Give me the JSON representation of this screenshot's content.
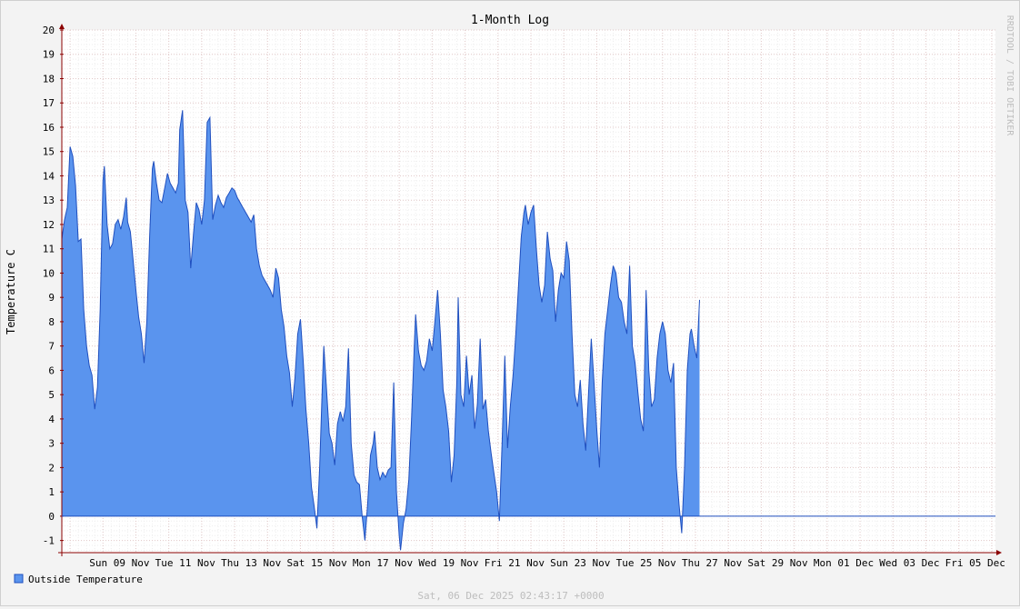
{
  "chart_data": {
    "type": "area",
    "title": "1-Month Log",
    "ylabel": "Temperature C",
    "watermark": "RRDTOOL / TOBI OETIKER",
    "timestamp": "Sat, 06 Dec 2025 02:43:17 +0000",
    "ylim": [
      -1.5,
      20
    ],
    "grid": true,
    "legend_position": "bottom-left",
    "colors": {
      "area": "#5a94ee",
      "line": "#1f4fbf",
      "background": "#f3f3f3",
      "plot_bg": "#ffffff",
      "axis": "#8b0000"
    },
    "yticks": [
      -1,
      0,
      1,
      2,
      3,
      4,
      5,
      6,
      7,
      8,
      9,
      10,
      11,
      12,
      13,
      14,
      15,
      16,
      17,
      18,
      19,
      20
    ],
    "xtick_labels": [
      "Sun 09 Nov",
      "Tue 11 Nov",
      "Thu 13 Nov",
      "Sat 15 Nov",
      "Mon 17 Nov",
      "Wed 19 Nov",
      "Fri 21 Nov",
      "Sun 23 Nov",
      "Tue 25 Nov",
      "Thu 27 Nov",
      "Sat 29 Nov",
      "Mon 01 Dec",
      "Wed 03 Dec",
      "Fri 05 Dec"
    ],
    "x_range": [
      "2025-11-07T18:00",
      "2025-12-06T02:43"
    ],
    "series": [
      {
        "name": "Outside Temperature",
        "points": [
          [
            "2025-11-07T18:00",
            11.4
          ],
          [
            "2025-11-07T20:00",
            12.2
          ],
          [
            "2025-11-07T22:00",
            12.7
          ],
          [
            "2025-11-08T00:00",
            15.2
          ],
          [
            "2025-11-08T02:00",
            14.8
          ],
          [
            "2025-11-08T04:00",
            13.6
          ],
          [
            "2025-11-08T06:00",
            11.3
          ],
          [
            "2025-11-08T08:00",
            11.4
          ],
          [
            "2025-11-08T10:00",
            8.5
          ],
          [
            "2025-11-08T12:00",
            7.0
          ],
          [
            "2025-11-08T14:00",
            6.2
          ],
          [
            "2025-11-08T16:00",
            5.8
          ],
          [
            "2025-11-08T18:00",
            4.4
          ],
          [
            "2025-11-08T20:00",
            5.3
          ],
          [
            "2025-11-08T22:00",
            8.5
          ],
          [
            "2025-11-09T00:00",
            13.8
          ],
          [
            "2025-11-09T01:00",
            14.4
          ],
          [
            "2025-11-09T03:00",
            12.0
          ],
          [
            "2025-11-09T05:00",
            11.0
          ],
          [
            "2025-11-09T07:00",
            11.2
          ],
          [
            "2025-11-09T09:00",
            12.0
          ],
          [
            "2025-11-09T11:00",
            12.2
          ],
          [
            "2025-11-09T13:00",
            11.8
          ],
          [
            "2025-11-09T15:00",
            12.3
          ],
          [
            "2025-11-09T17:00",
            13.1
          ],
          [
            "2025-11-09T18:00",
            12.1
          ],
          [
            "2025-11-09T20:00",
            11.7
          ],
          [
            "2025-11-09T22:00",
            10.5
          ],
          [
            "2025-11-10T00:00",
            9.3
          ],
          [
            "2025-11-10T02:00",
            8.2
          ],
          [
            "2025-11-10T04:00",
            7.5
          ],
          [
            "2025-11-10T06:00",
            6.3
          ],
          [
            "2025-11-10T08:00",
            8.0
          ],
          [
            "2025-11-10T10:00",
            11.5
          ],
          [
            "2025-11-10T12:00",
            14.3
          ],
          [
            "2025-11-10T13:00",
            14.6
          ],
          [
            "2025-11-10T15:00",
            13.7
          ],
          [
            "2025-11-10T17:00",
            13.0
          ],
          [
            "2025-11-10T19:00",
            12.9
          ],
          [
            "2025-11-10T21:00",
            13.5
          ],
          [
            "2025-11-10T23:00",
            14.1
          ],
          [
            "2025-11-11T01:00",
            13.7
          ],
          [
            "2025-11-11T03:00",
            13.5
          ],
          [
            "2025-11-11T05:00",
            13.3
          ],
          [
            "2025-11-11T07:00",
            13.7
          ],
          [
            "2025-11-11T08:00",
            15.9
          ],
          [
            "2025-11-11T10:00",
            16.7
          ],
          [
            "2025-11-11T12:00",
            13.0
          ],
          [
            "2025-11-11T14:00",
            12.5
          ],
          [
            "2025-11-11T16:00",
            10.2
          ],
          [
            "2025-11-11T18:00",
            11.6
          ],
          [
            "2025-11-11T20:00",
            12.9
          ],
          [
            "2025-11-11T22:00",
            12.6
          ],
          [
            "2025-11-12T00:00",
            12.0
          ],
          [
            "2025-11-12T02:00",
            13.0
          ],
          [
            "2025-11-12T04:00",
            16.2
          ],
          [
            "2025-11-12T06:00",
            16.4
          ],
          [
            "2025-11-12T08:00",
            12.2
          ],
          [
            "2025-11-12T10:00",
            12.8
          ],
          [
            "2025-11-12T12:00",
            13.2
          ],
          [
            "2025-11-12T14:00",
            12.9
          ],
          [
            "2025-11-12T16:00",
            12.7
          ],
          [
            "2025-11-12T18:00",
            13.1
          ],
          [
            "2025-11-12T20:00",
            13.3
          ],
          [
            "2025-11-12T22:00",
            13.5
          ],
          [
            "2025-11-13T00:00",
            13.4
          ],
          [
            "2025-11-13T02:00",
            13.1
          ],
          [
            "2025-11-13T04:00",
            12.9
          ],
          [
            "2025-11-13T06:00",
            12.7
          ],
          [
            "2025-11-13T08:00",
            12.5
          ],
          [
            "2025-11-13T10:00",
            12.3
          ],
          [
            "2025-11-13T12:00",
            12.1
          ],
          [
            "2025-11-13T14:00",
            12.4
          ],
          [
            "2025-11-13T16:00",
            11.0
          ],
          [
            "2025-11-13T18:00",
            10.3
          ],
          [
            "2025-11-13T20:00",
            9.9
          ],
          [
            "2025-11-13T22:00",
            9.7
          ],
          [
            "2025-11-14T00:00",
            9.5
          ],
          [
            "2025-11-14T02:00",
            9.3
          ],
          [
            "2025-11-14T04:00",
            9.0
          ],
          [
            "2025-11-14T06:00",
            10.2
          ],
          [
            "2025-11-14T08:00",
            9.8
          ],
          [
            "2025-11-14T10:00",
            8.5
          ],
          [
            "2025-11-14T12:00",
            7.8
          ],
          [
            "2025-11-14T14:00",
            6.6
          ],
          [
            "2025-11-14T16:00",
            5.9
          ],
          [
            "2025-11-14T18:00",
            4.5
          ],
          [
            "2025-11-14T20:00",
            5.7
          ],
          [
            "2025-11-14T22:00",
            7.5
          ],
          [
            "2025-11-15T00:00",
            8.1
          ],
          [
            "2025-11-15T02:00",
            6.4
          ],
          [
            "2025-11-15T04:00",
            4.4
          ],
          [
            "2025-11-15T06:00",
            3.0
          ],
          [
            "2025-11-15T08:00",
            1.2
          ],
          [
            "2025-11-15T10:00",
            0.4
          ],
          [
            "2025-11-15T12:00",
            -0.5
          ],
          [
            "2025-11-15T14:00",
            2.0
          ],
          [
            "2025-11-15T16:00",
            5.5
          ],
          [
            "2025-11-15T17:00",
            7.0
          ],
          [
            "2025-11-15T19:00",
            5.2
          ],
          [
            "2025-11-15T21:00",
            3.4
          ],
          [
            "2025-11-15T23:00",
            3.0
          ],
          [
            "2025-11-16T01:00",
            2.1
          ],
          [
            "2025-11-16T03:00",
            3.8
          ],
          [
            "2025-11-16T05:00",
            4.3
          ],
          [
            "2025-11-16T07:00",
            3.9
          ],
          [
            "2025-11-16T09:00",
            4.5
          ],
          [
            "2025-11-16T11:00",
            6.9
          ],
          [
            "2025-11-16T13:00",
            3.0
          ],
          [
            "2025-11-16T15:00",
            1.7
          ],
          [
            "2025-11-16T17:00",
            1.4
          ],
          [
            "2025-11-16T19:00",
            1.3
          ],
          [
            "2025-11-16T21:00",
            0.0
          ],
          [
            "2025-11-16T23:00",
            -1.0
          ],
          [
            "2025-11-17T01:00",
            0.5
          ],
          [
            "2025-11-17T03:00",
            2.5
          ],
          [
            "2025-11-17T05:00",
            3.0
          ],
          [
            "2025-11-17T06:00",
            3.5
          ],
          [
            "2025-11-17T08:00",
            2.0
          ],
          [
            "2025-11-17T10:00",
            1.5
          ],
          [
            "2025-11-17T12:00",
            1.8
          ],
          [
            "2025-11-17T14:00",
            1.6
          ],
          [
            "2025-11-17T16:00",
            1.9
          ],
          [
            "2025-11-17T18:00",
            2.0
          ],
          [
            "2025-11-17T20:00",
            5.5
          ],
          [
            "2025-11-17T22:00",
            1.0
          ],
          [
            "2025-11-18T00:00",
            -0.8
          ],
          [
            "2025-11-18T01:00",
            -1.4
          ],
          [
            "2025-11-18T03:00",
            -0.3
          ],
          [
            "2025-11-18T05:00",
            0.3
          ],
          [
            "2025-11-18T07:00",
            1.5
          ],
          [
            "2025-11-18T09:00",
            4.0
          ],
          [
            "2025-11-18T11:00",
            7.0
          ],
          [
            "2025-11-18T12:00",
            8.3
          ],
          [
            "2025-11-18T14:00",
            6.8
          ],
          [
            "2025-11-18T16:00",
            6.2
          ],
          [
            "2025-11-18T18:00",
            6.0
          ],
          [
            "2025-11-18T20:00",
            6.4
          ],
          [
            "2025-11-18T22:00",
            7.3
          ],
          [
            "2025-11-19T00:00",
            6.8
          ],
          [
            "2025-11-19T02:00",
            8.0
          ],
          [
            "2025-11-19T04:00",
            9.3
          ],
          [
            "2025-11-19T06:00",
            7.5
          ],
          [
            "2025-11-19T08:00",
            5.2
          ],
          [
            "2025-11-19T10:00",
            4.5
          ],
          [
            "2025-11-19T12:00",
            3.5
          ],
          [
            "2025-11-19T14:00",
            1.4
          ],
          [
            "2025-11-19T16:00",
            2.5
          ],
          [
            "2025-11-19T18:00",
            5.5
          ],
          [
            "2025-11-19T19:00",
            9.0
          ],
          [
            "2025-11-19T21:00",
            5.0
          ],
          [
            "2025-11-19T23:00",
            4.5
          ],
          [
            "2025-11-20T01:00",
            6.6
          ],
          [
            "2025-11-20T03:00",
            5.0
          ],
          [
            "2025-11-20T05:00",
            5.8
          ],
          [
            "2025-11-20T07:00",
            3.6
          ],
          [
            "2025-11-20T09:00",
            4.6
          ],
          [
            "2025-11-20T11:00",
            7.3
          ],
          [
            "2025-11-20T13:00",
            4.4
          ],
          [
            "2025-11-20T15:00",
            4.8
          ],
          [
            "2025-11-20T17:00",
            3.5
          ],
          [
            "2025-11-20T19:00",
            2.6
          ],
          [
            "2025-11-20T21:00",
            1.8
          ],
          [
            "2025-11-20T23:00",
            1.0
          ],
          [
            "2025-11-21T01:00",
            -0.2
          ],
          [
            "2025-11-21T03:00",
            3.0
          ],
          [
            "2025-11-21T05:00",
            6.6
          ],
          [
            "2025-11-21T07:00",
            2.8
          ],
          [
            "2025-11-21T09:00",
            4.5
          ],
          [
            "2025-11-21T11:00",
            5.8
          ],
          [
            "2025-11-21T13:00",
            7.5
          ],
          [
            "2025-11-21T15:00",
            9.5
          ],
          [
            "2025-11-21T17:00",
            11.5
          ],
          [
            "2025-11-21T19:00",
            12.5
          ],
          [
            "2025-11-21T20:00",
            12.8
          ],
          [
            "2025-11-21T22:00",
            12.0
          ],
          [
            "2025-11-22T00:00",
            12.5
          ],
          [
            "2025-11-22T02:00",
            12.8
          ],
          [
            "2025-11-22T04:00",
            11.0
          ],
          [
            "2025-11-22T06:00",
            9.5
          ],
          [
            "2025-11-22T08:00",
            8.8
          ],
          [
            "2025-11-22T10:00",
            9.5
          ],
          [
            "2025-11-22T12:00",
            11.7
          ],
          [
            "2025-11-22T14:00",
            10.6
          ],
          [
            "2025-11-22T16:00",
            10.1
          ],
          [
            "2025-11-22T18:00",
            8.0
          ],
          [
            "2025-11-22T20:00",
            9.3
          ],
          [
            "2025-11-22T22:00",
            10.0
          ],
          [
            "2025-11-23T00:00",
            9.8
          ],
          [
            "2025-11-23T02:00",
            11.3
          ],
          [
            "2025-11-23T04:00",
            10.5
          ],
          [
            "2025-11-23T06:00",
            7.5
          ],
          [
            "2025-11-23T08:00",
            5.0
          ],
          [
            "2025-11-23T10:00",
            4.5
          ],
          [
            "2025-11-23T12:00",
            5.6
          ],
          [
            "2025-11-23T14:00",
            3.8
          ],
          [
            "2025-11-23T16:00",
            2.7
          ],
          [
            "2025-11-23T18:00",
            5.0
          ],
          [
            "2025-11-23T20:00",
            7.3
          ],
          [
            "2025-11-23T22:00",
            5.5
          ],
          [
            "2025-11-24T00:00",
            3.6
          ],
          [
            "2025-11-24T02:00",
            2.0
          ],
          [
            "2025-11-24T04:00",
            5.5
          ],
          [
            "2025-11-24T06:00",
            7.5
          ],
          [
            "2025-11-24T08:00",
            8.5
          ],
          [
            "2025-11-24T10:00",
            9.5
          ],
          [
            "2025-11-24T12:00",
            10.3
          ],
          [
            "2025-11-24T14:00",
            10.0
          ],
          [
            "2025-11-24T16:00",
            9.0
          ],
          [
            "2025-11-24T18:00",
            8.8
          ],
          [
            "2025-11-24T20:00",
            8.0
          ],
          [
            "2025-11-24T22:00",
            7.5
          ],
          [
            "2025-11-25T00:00",
            10.3
          ],
          [
            "2025-11-25T02:00",
            7.0
          ],
          [
            "2025-11-25T04:00",
            6.3
          ],
          [
            "2025-11-25T06:00",
            5.1
          ],
          [
            "2025-11-25T08:00",
            4.0
          ],
          [
            "2025-11-25T10:00",
            3.5
          ],
          [
            "2025-11-25T12:00",
            9.3
          ],
          [
            "2025-11-25T14:00",
            6.0
          ],
          [
            "2025-11-25T16:00",
            4.5
          ],
          [
            "2025-11-25T18:00",
            4.8
          ],
          [
            "2025-11-25T20:00",
            6.5
          ],
          [
            "2025-11-25T22:00",
            7.5
          ],
          [
            "2025-11-26T00:00",
            8.0
          ],
          [
            "2025-11-26T02:00",
            7.5
          ],
          [
            "2025-11-26T04:00",
            6.0
          ],
          [
            "2025-11-26T06:00",
            5.5
          ],
          [
            "2025-11-26T08:00",
            6.3
          ],
          [
            "2025-11-26T10:00",
            2.0
          ],
          [
            "2025-11-26T12:00",
            0.5
          ],
          [
            "2025-11-26T14:00",
            -0.7
          ],
          [
            "2025-11-26T16:00",
            2.0
          ],
          [
            "2025-11-26T18:00",
            6.0
          ],
          [
            "2025-11-26T20:00",
            7.5
          ],
          [
            "2025-11-26T21:00",
            7.7
          ],
          [
            "2025-11-26T23:00",
            7.0
          ],
          [
            "2025-11-27T01:00",
            6.5
          ],
          [
            "2025-11-27T03:00",
            8.9
          ]
        ]
      }
    ]
  }
}
